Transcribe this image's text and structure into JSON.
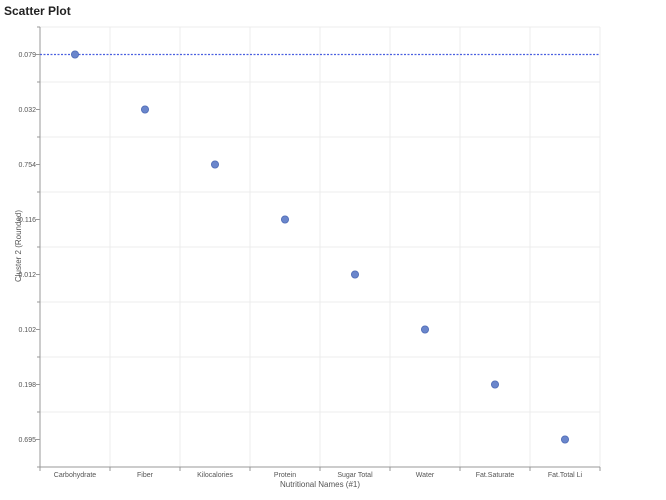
{
  "chart_data": {
    "type": "scatter",
    "title": "Scatter Plot",
    "xlabel": "Nutritional Names (#1)",
    "ylabel": "Cluster 2 (Rounded)",
    "categories": [
      "Carbohydrate",
      "Fiber",
      "Kilocalories",
      "Protein",
      "Sugar Total",
      "Water",
      "Fat.Saturate",
      "Fat.Total Li"
    ],
    "y_categories": [
      "0.079",
      "0.032",
      "0.754",
      "0.116",
      "0.012",
      "0.102",
      "0.198",
      "0.695"
    ],
    "points": [
      {
        "x": "Carbohydrate",
        "y": "0.079"
      },
      {
        "x": "Fiber",
        "y": "0.032"
      },
      {
        "x": "Kilocalories",
        "y": "0.754"
      },
      {
        "x": "Protein",
        "y": "0.116"
      },
      {
        "x": "Sugar Total",
        "y": "0.012"
      },
      {
        "x": "Water",
        "y": "0.102"
      },
      {
        "x": "Fat.Saturate",
        "y": "0.198"
      },
      {
        "x": "Fat.Total Li",
        "y": "0.695"
      }
    ],
    "reference_line": {
      "y": "0.079",
      "style": "dotted"
    },
    "grid": true,
    "colors": {
      "point": "#6a86cc",
      "point_stroke": "#4e6bb5",
      "reference_line": "#4a5fe0",
      "grid": "#ececec",
      "axis": "#999999"
    }
  }
}
